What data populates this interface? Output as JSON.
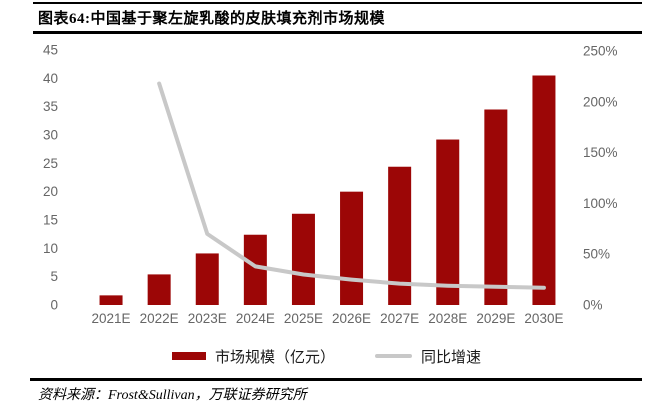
{
  "figure": {
    "title": "图表64:中国基于聚左旋乳酸的皮肤填充剂市场规模",
    "source": "资料来源：Frost&Sullivan，万联证券研究所"
  },
  "chart_data": {
    "type": "bar",
    "subtype": "bar-line combo, dual y-axis, no gridlines",
    "title": "图表64:中国基于聚左旋乳酸的皮肤填充剂市场规模",
    "categories": [
      "2021E",
      "2022E",
      "2023E",
      "2024E",
      "2025E",
      "2026E",
      "2027E",
      "2028E",
      "2029E",
      "2030E"
    ],
    "series": [
      {
        "name": "市场规模（亿元）",
        "type": "bar",
        "axis": "left",
        "color": "#9C0606",
        "values": [
          1.7,
          5.4,
          9.1,
          12.4,
          16.1,
          20.0,
          24.4,
          29.2,
          34.5,
          40.5
        ]
      },
      {
        "name": "同比增速",
        "type": "line",
        "axis": "right",
        "unit": "%",
        "color": "#C8C8C8",
        "values": [
          null,
          218,
          70,
          38,
          30,
          25,
          21,
          19,
          18,
          17
        ]
      }
    ],
    "left_axis": {
      "min": 0,
      "max": 45,
      "step": 5,
      "tick_labels": [
        "0",
        "5",
        "10",
        "15",
        "20",
        "25",
        "30",
        "35",
        "40",
        "45"
      ]
    },
    "right_axis": {
      "min": 0,
      "max": 250,
      "step": 50,
      "tick_labels": [
        "0%",
        "50%",
        "100%",
        "150%",
        "200%",
        "250%"
      ]
    },
    "legend_position": "bottom",
    "grid": false,
    "axis_label_color": "#666666"
  }
}
